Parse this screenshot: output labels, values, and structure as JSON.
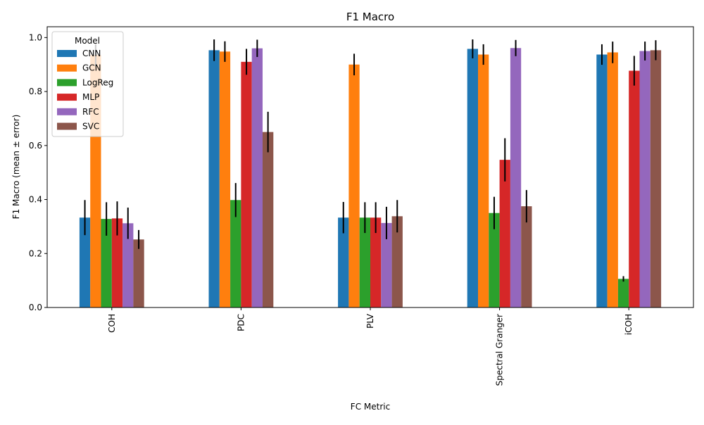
{
  "chart_data": {
    "type": "bar",
    "title": "F1 Macro",
    "xlabel": "FC Metric",
    "ylabel": "F1 Macro (mean ± error)",
    "ylim": [
      0,
      1.04
    ],
    "yticks": [
      0.0,
      0.2,
      0.4,
      0.6,
      0.8,
      1.0
    ],
    "ytick_labels": [
      "0.0",
      "0.2",
      "0.4",
      "0.6",
      "0.8",
      "1.0"
    ],
    "categories": [
      "COH",
      "PDC",
      "PLV",
      "Spectral Granger",
      "iCOH"
    ],
    "legend": {
      "title": "Model",
      "placement": "top-left"
    },
    "series": [
      {
        "name": "CNN",
        "color": "#1f77b4",
        "values": [
          0.333,
          0.953,
          0.333,
          0.958,
          0.937
        ],
        "errors": [
          0.065,
          0.04,
          0.058,
          0.035,
          0.038
        ]
      },
      {
        "name": "GCN",
        "color": "#ff7f0e",
        "values": [
          0.935,
          0.948,
          0.9,
          0.937,
          0.945
        ],
        "errors": [
          0.04,
          0.038,
          0.04,
          0.038,
          0.04
        ]
      },
      {
        "name": "LogReg",
        "color": "#2ca02c",
        "values": [
          0.328,
          0.398,
          0.333,
          0.35,
          0.106
        ],
        "errors": [
          0.062,
          0.063,
          0.057,
          0.06,
          0.01
        ]
      },
      {
        "name": "MLP",
        "color": "#d62728",
        "values": [
          0.33,
          0.91,
          0.333,
          0.547,
          0.877
        ],
        "errors": [
          0.063,
          0.048,
          0.057,
          0.08,
          0.055
        ]
      },
      {
        "name": "RFC",
        "color": "#9467bd",
        "values": [
          0.312,
          0.96,
          0.313,
          0.961,
          0.95
        ],
        "errors": [
          0.058,
          0.032,
          0.06,
          0.03,
          0.035
        ]
      },
      {
        "name": "SVC",
        "color": "#8c564b",
        "values": [
          0.252,
          0.65,
          0.338,
          0.375,
          0.953
        ],
        "errors": [
          0.035,
          0.075,
          0.06,
          0.06,
          0.037
        ]
      }
    ]
  }
}
